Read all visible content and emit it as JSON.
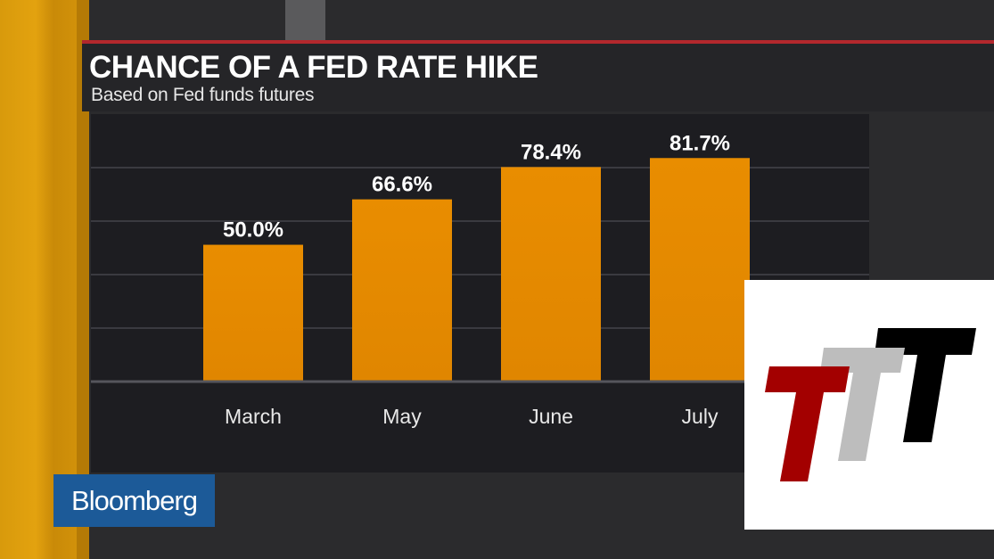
{
  "header": {
    "title": "CHANCE OF A FED RATE HIKE",
    "subtitle": "Based on Fed funds futures"
  },
  "branding": {
    "network": "Bloomberg",
    "overlay_logo": "TTT"
  },
  "colors": {
    "bar": "#e68a00",
    "accent_line": "#b3282d",
    "network_box": "#1c5a98"
  },
  "chart_data": {
    "type": "bar",
    "title": "CHANCE OF A FED RATE HIKE",
    "subtitle": "Based on Fed funds futures",
    "categories": [
      "March",
      "May",
      "June",
      "July"
    ],
    "values": [
      50.0,
      66.6,
      78.4,
      81.7
    ],
    "data_labels": [
      "50.0%",
      "66.6%",
      "78.4%",
      "81.7%"
    ],
    "xlabel": "",
    "ylabel": "",
    "ylim": [
      0,
      100
    ],
    "grid": true
  }
}
